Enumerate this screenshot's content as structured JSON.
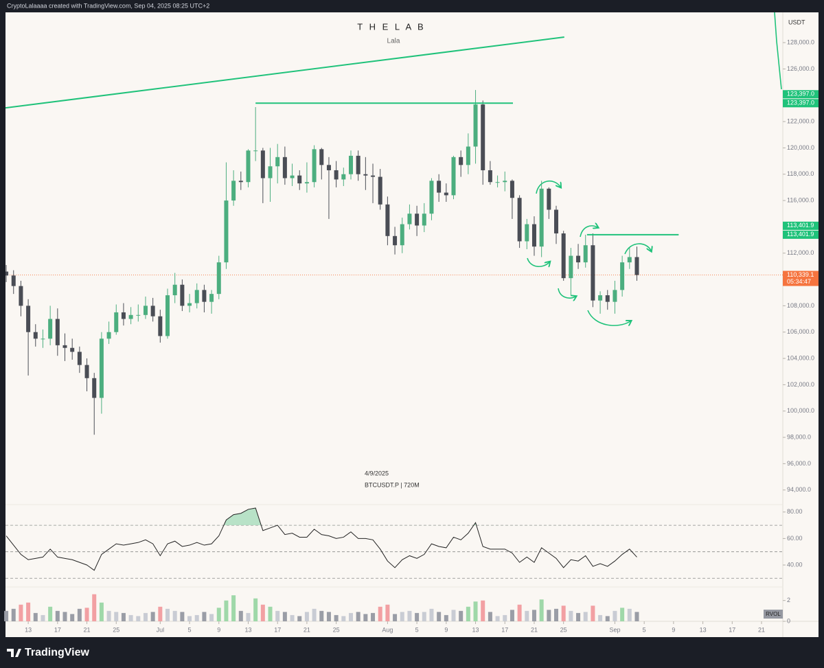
{
  "header": {
    "attribution": "CryptoLalaaaa created with TradingView.com, Sep 04, 2025 08:25 UTC+2"
  },
  "chart_data": {
    "type": "candlestick",
    "title": "T H E  L A B",
    "subtitle": "Lala",
    "currency": "USDT",
    "info": [
      "4/9/2025",
      "BTCUSDT.P | 720M"
    ],
    "up_color": "#4cae7f",
    "down_color": "#4a4d55",
    "line_color": "#1fc27a",
    "last_color": "#f5743f",
    "open": [
      110600,
      110300,
      109500,
      108000,
      106000,
      105500,
      105500,
      107000,
      105000,
      104800,
      104500,
      103500,
      102500,
      101000,
      105500,
      106000,
      107500,
      107000,
      107300,
      107300,
      108000,
      107200,
      105700,
      108800,
      109600,
      108000,
      108200,
      109200,
      108300,
      108900,
      111300,
      116000,
      117500,
      117400,
      119800,
      119800,
      117700,
      118600,
      119300,
      117700,
      117900,
      117300,
      117400,
      119900,
      118700,
      118300,
      117600,
      118000,
      119400,
      118000,
      117900,
      117800,
      115700,
      113300,
      112600,
      114200,
      115000,
      114100,
      115000,
      117500,
      116600,
      116400,
      119300,
      118700,
      120100,
      123300,
      118300,
      117400,
      117400,
      117500,
      116200,
      112900,
      114200,
      112500,
      116900,
      115300,
      113500,
      110100,
      111800,
      111300,
      112600,
      108400,
      108800,
      108300,
      109200,
      111300,
      111700
    ],
    "high": [
      111100,
      110700,
      109900,
      108500,
      106600,
      106200,
      108000,
      107800,
      105900,
      105500,
      104900,
      104000,
      102900,
      106000,
      106800,
      108100,
      108200,
      107900,
      108100,
      108700,
      108600,
      107700,
      109300,
      110500,
      110000,
      108900,
      109700,
      109600,
      109200,
      111800,
      118900,
      118300,
      118200,
      119900,
      123100,
      120000,
      120000,
      120300,
      120100,
      118800,
      118300,
      118900,
      120200,
      120000,
      119300,
      119000,
      118500,
      119800,
      119800,
      119300,
      118800,
      118400,
      116300,
      114000,
      114700,
      115700,
      115600,
      115800,
      117700,
      118000,
      117300,
      119400,
      119800,
      121100,
      124400,
      123600,
      119000,
      117900,
      118200,
      117600,
      116400,
      114600,
      114800,
      117500,
      117000,
      115600,
      113700,
      112400,
      112700,
      113400,
      113500,
      109100,
      109200,
      109900,
      111800,
      112400,
      112500
    ],
    "low": [
      109800,
      108900,
      107200,
      102700,
      104900,
      104800,
      105000,
      104200,
      103800,
      103900,
      102900,
      101500,
      98200,
      99800,
      105100,
      105800,
      106500,
      106600,
      106800,
      107000,
      106800,
      105200,
      105500,
      108200,
      107600,
      107500,
      107800,
      107500,
      107400,
      108500,
      110800,
      115600,
      116800,
      117000,
      119000,
      115800,
      115900,
      117300,
      117200,
      117100,
      116800,
      116600,
      117000,
      117600,
      114600,
      117000,
      117100,
      117600,
      117500,
      116800,
      115800,
      115300,
      112600,
      111900,
      112000,
      113800,
      113300,
      113600,
      114500,
      115900,
      115900,
      116100,
      117800,
      118000,
      118800,
      117200,
      117200,
      117000,
      116700,
      114600,
      112400,
      112300,
      111800,
      111700,
      114600,
      112700,
      109900,
      108800,
      110800,
      110900,
      107900,
      107400,
      107700,
      107400,
      108700,
      110800,
      109900
    ],
    "close": [
      110300,
      109500,
      108000,
      106000,
      105500,
      105500,
      107000,
      105000,
      104800,
      104500,
      103500,
      102500,
      101000,
      105500,
      106000,
      107500,
      107000,
      107300,
      107300,
      108000,
      107200,
      105700,
      108800,
      109600,
      108000,
      108200,
      109200,
      108300,
      108900,
      111300,
      116000,
      117500,
      117400,
      119800,
      119800,
      117700,
      118600,
      119300,
      117700,
      117900,
      117300,
      117400,
      119900,
      118700,
      118300,
      117600,
      118000,
      119400,
      118000,
      117900,
      117800,
      115700,
      113300,
      112600,
      114200,
      115000,
      114100,
      115000,
      117500,
      116600,
      116400,
      119300,
      118700,
      120100,
      123300,
      118300,
      117400,
      117400,
      117500,
      116200,
      112900,
      114200,
      112500,
      116900,
      115300,
      113500,
      110100,
      111800,
      111300,
      112600,
      108400,
      108800,
      108300,
      109200,
      111300,
      111700,
      110339.1
    ],
    "xlim": [
      -0.1,
      105.9
    ],
    "xticks": [
      {
        "value": 3,
        "label": "13"
      },
      {
        "value": 7,
        "label": "17"
      },
      {
        "value": 11,
        "label": "21"
      },
      {
        "value": 15,
        "label": "25"
      },
      {
        "value": 21,
        "label": "Jul"
      },
      {
        "value": 25,
        "label": "5"
      },
      {
        "value": 29,
        "label": "9"
      },
      {
        "value": 33,
        "label": "13"
      },
      {
        "value": 37,
        "label": "17"
      },
      {
        "value": 41,
        "label": "21"
      },
      {
        "value": 45,
        "label": "25"
      },
      {
        "value": 52,
        "label": "Aug"
      },
      {
        "value": 56,
        "label": "5"
      },
      {
        "value": 60,
        "label": "9"
      },
      {
        "value": 64,
        "label": "13"
      },
      {
        "value": 68,
        "label": "17"
      },
      {
        "value": 72,
        "label": "21"
      },
      {
        "value": 76,
        "label": "25"
      },
      {
        "value": 83,
        "label": "Sep"
      },
      {
        "value": 87,
        "label": "5"
      },
      {
        "value": 91,
        "label": "9"
      },
      {
        "value": 95,
        "label": "13"
      },
      {
        "value": 99,
        "label": "17"
      },
      {
        "value": 103,
        "label": "21"
      }
    ],
    "ylim": [
      93150,
      130300
    ],
    "yticks": [
      {
        "value": 94000,
        "label": "94,000.0"
      },
      {
        "value": 96000,
        "label": "96,000.0"
      },
      {
        "value": 98000,
        "label": "98,000.0"
      },
      {
        "value": 100000,
        "label": "100,000.0"
      },
      {
        "value": 102000,
        "label": "102,000.0"
      },
      {
        "value": 104000,
        "label": "104,000.0"
      },
      {
        "value": 106000,
        "label": "106,000.0"
      },
      {
        "value": 108000,
        "label": "108,000.0"
      },
      {
        "value": 112000,
        "label": "112,000.0"
      },
      {
        "value": 116000,
        "label": "116,000.0"
      },
      {
        "value": 118000,
        "label": "118,000.0"
      },
      {
        "value": 120000,
        "label": "120,000.0"
      },
      {
        "value": 122000,
        "label": "122,000.0"
      },
      {
        "value": 126000,
        "label": "126,000.0"
      },
      {
        "value": 128000,
        "label": "128,000.0"
      }
    ],
    "hlines": [
      {
        "value": 123397,
        "label": "123,397.0",
        "x": [
          34,
          69.1
        ]
      },
      {
        "value": 113401.9,
        "label": "113,401.9",
        "x": [
          79.2,
          91.7
        ]
      }
    ],
    "trendline": {
      "x": [
        -0.1,
        76.1
      ],
      "y": [
        123040,
        128420
      ]
    },
    "last": {
      "value": 110339.1,
      "label": "110,339.1",
      "countdown": "05:34:47"
    },
    "rsi": {
      "color": "#222222",
      "values": [
        62,
        55,
        48,
        44,
        45,
        46,
        52,
        46,
        45,
        44,
        42,
        40,
        36,
        48,
        52,
        56,
        55,
        56,
        57,
        59,
        56,
        47,
        56,
        58,
        54,
        55,
        57,
        55,
        56,
        62,
        74,
        78,
        79,
        82,
        83,
        66,
        68,
        70,
        63,
        64,
        61,
        61,
        67,
        63,
        62,
        60,
        61,
        65,
        60,
        60,
        59,
        52,
        43,
        38,
        44,
        47,
        45,
        48,
        56,
        54,
        53,
        61,
        59,
        64,
        72,
        54,
        52,
        52,
        52,
        49,
        42,
        46,
        42,
        53,
        49,
        45,
        38,
        44,
        43,
        47,
        39,
        41,
        39,
        43,
        48,
        52,
        46
      ],
      "ylim": [
        26,
        83
      ],
      "yticks": [
        {
          "value": 80,
          "label": "80.00"
        },
        {
          "value": 60,
          "label": "60.00"
        },
        {
          "value": 40,
          "label": "40.00"
        }
      ],
      "bands": [
        70,
        50,
        30
      ],
      "fill": "#a8dcbc"
    },
    "rvol": {
      "name": "RVOL",
      "values": [
        1.0,
        1.2,
        1.6,
        1.8,
        0.8,
        0.6,
        1.4,
        1.0,
        0.9,
        0.7,
        1.2,
        1.3,
        2.6,
        1.8,
        1.0,
        0.9,
        0.8,
        0.6,
        0.5,
        0.8,
        0.9,
        1.4,
        1.2,
        1.0,
        0.9,
        0.5,
        0.6,
        0.9,
        0.7,
        1.3,
        2.0,
        2.5,
        1.0,
        0.8,
        2.2,
        1.6,
        1.4,
        1.0,
        0.9,
        0.6,
        0.5,
        0.9,
        1.2,
        1.0,
        0.9,
        0.6,
        0.5,
        0.8,
        0.9,
        0.7,
        0.8,
        1.4,
        1.6,
        0.7,
        0.9,
        1.0,
        0.8,
        0.9,
        1.2,
        0.9,
        0.6,
        1.1,
        1.0,
        1.4,
        1.9,
        2.0,
        0.9,
        0.5,
        0.6,
        1.1,
        1.6,
        1.0,
        1.1,
        2.1,
        1.1,
        1.2,
        1.5,
        1.0,
        0.8,
        0.9,
        1.5,
        0.6,
        0.5,
        1.0,
        1.3,
        1.2,
        0.9
      ],
      "ylim": [
        0,
        3.1
      ],
      "yticks": [
        2,
        0
      ],
      "colors": {
        "up": "#c9ccd4",
        "down": "#9a9da6",
        "up_high": "#9fd8a9",
        "down_high": "#f2a0a3"
      }
    }
  },
  "footer": {
    "brand": "TradingView"
  }
}
